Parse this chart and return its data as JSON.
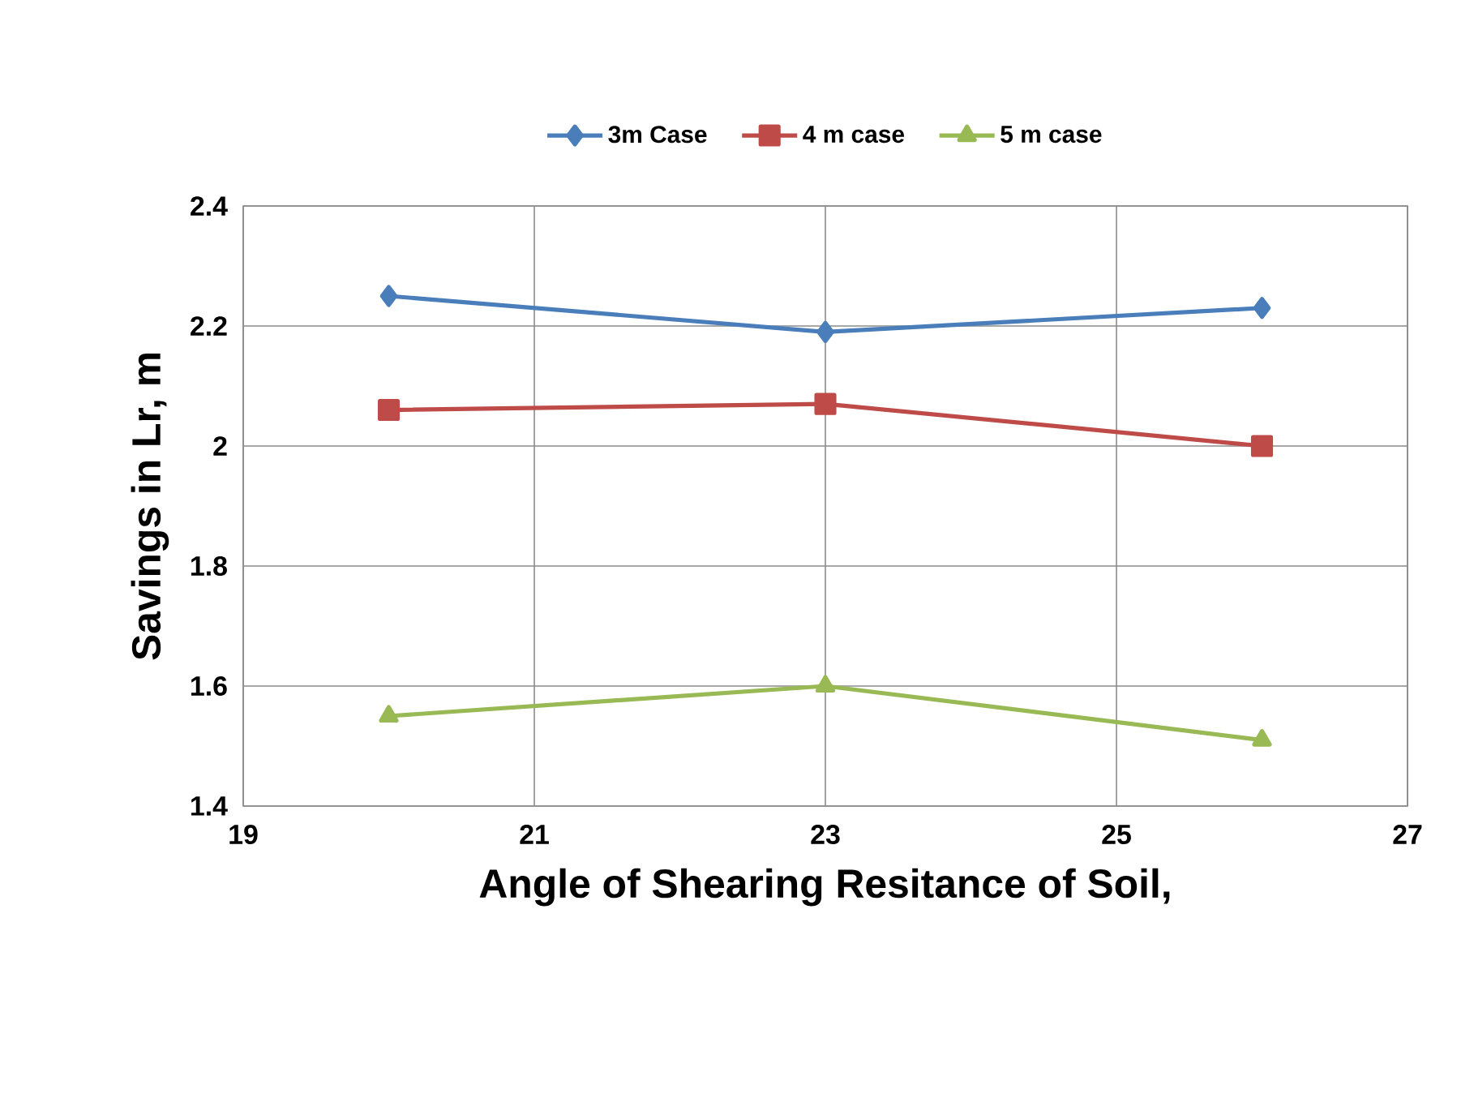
{
  "chart_data": {
    "type": "line",
    "xlabel": "Angle of Shearing Resitance of Soil,",
    "ylabel": "Savings in Lr, m",
    "x": [
      20,
      23,
      26
    ],
    "series": [
      {
        "name": "3m Case",
        "color": "#4a7ebb",
        "marker": "diamond",
        "values": [
          2.25,
          2.19,
          2.23
        ]
      },
      {
        "name": "4 m case",
        "color": "#be4b48",
        "marker": "square",
        "values": [
          2.06,
          2.07,
          2.0
        ]
      },
      {
        "name": "5 m case",
        "color": "#98b954",
        "marker": "triangle",
        "values": [
          1.55,
          1.6,
          1.51
        ]
      }
    ],
    "xlim": [
      19,
      27
    ],
    "xticks": [
      19,
      21,
      23,
      25,
      27
    ],
    "ylim": [
      1.4,
      2.4
    ],
    "yticks": [
      1.4,
      1.6,
      1.8,
      2,
      2.2,
      2.4
    ],
    "grid": true,
    "legend": "top",
    "line_style": "solid"
  }
}
